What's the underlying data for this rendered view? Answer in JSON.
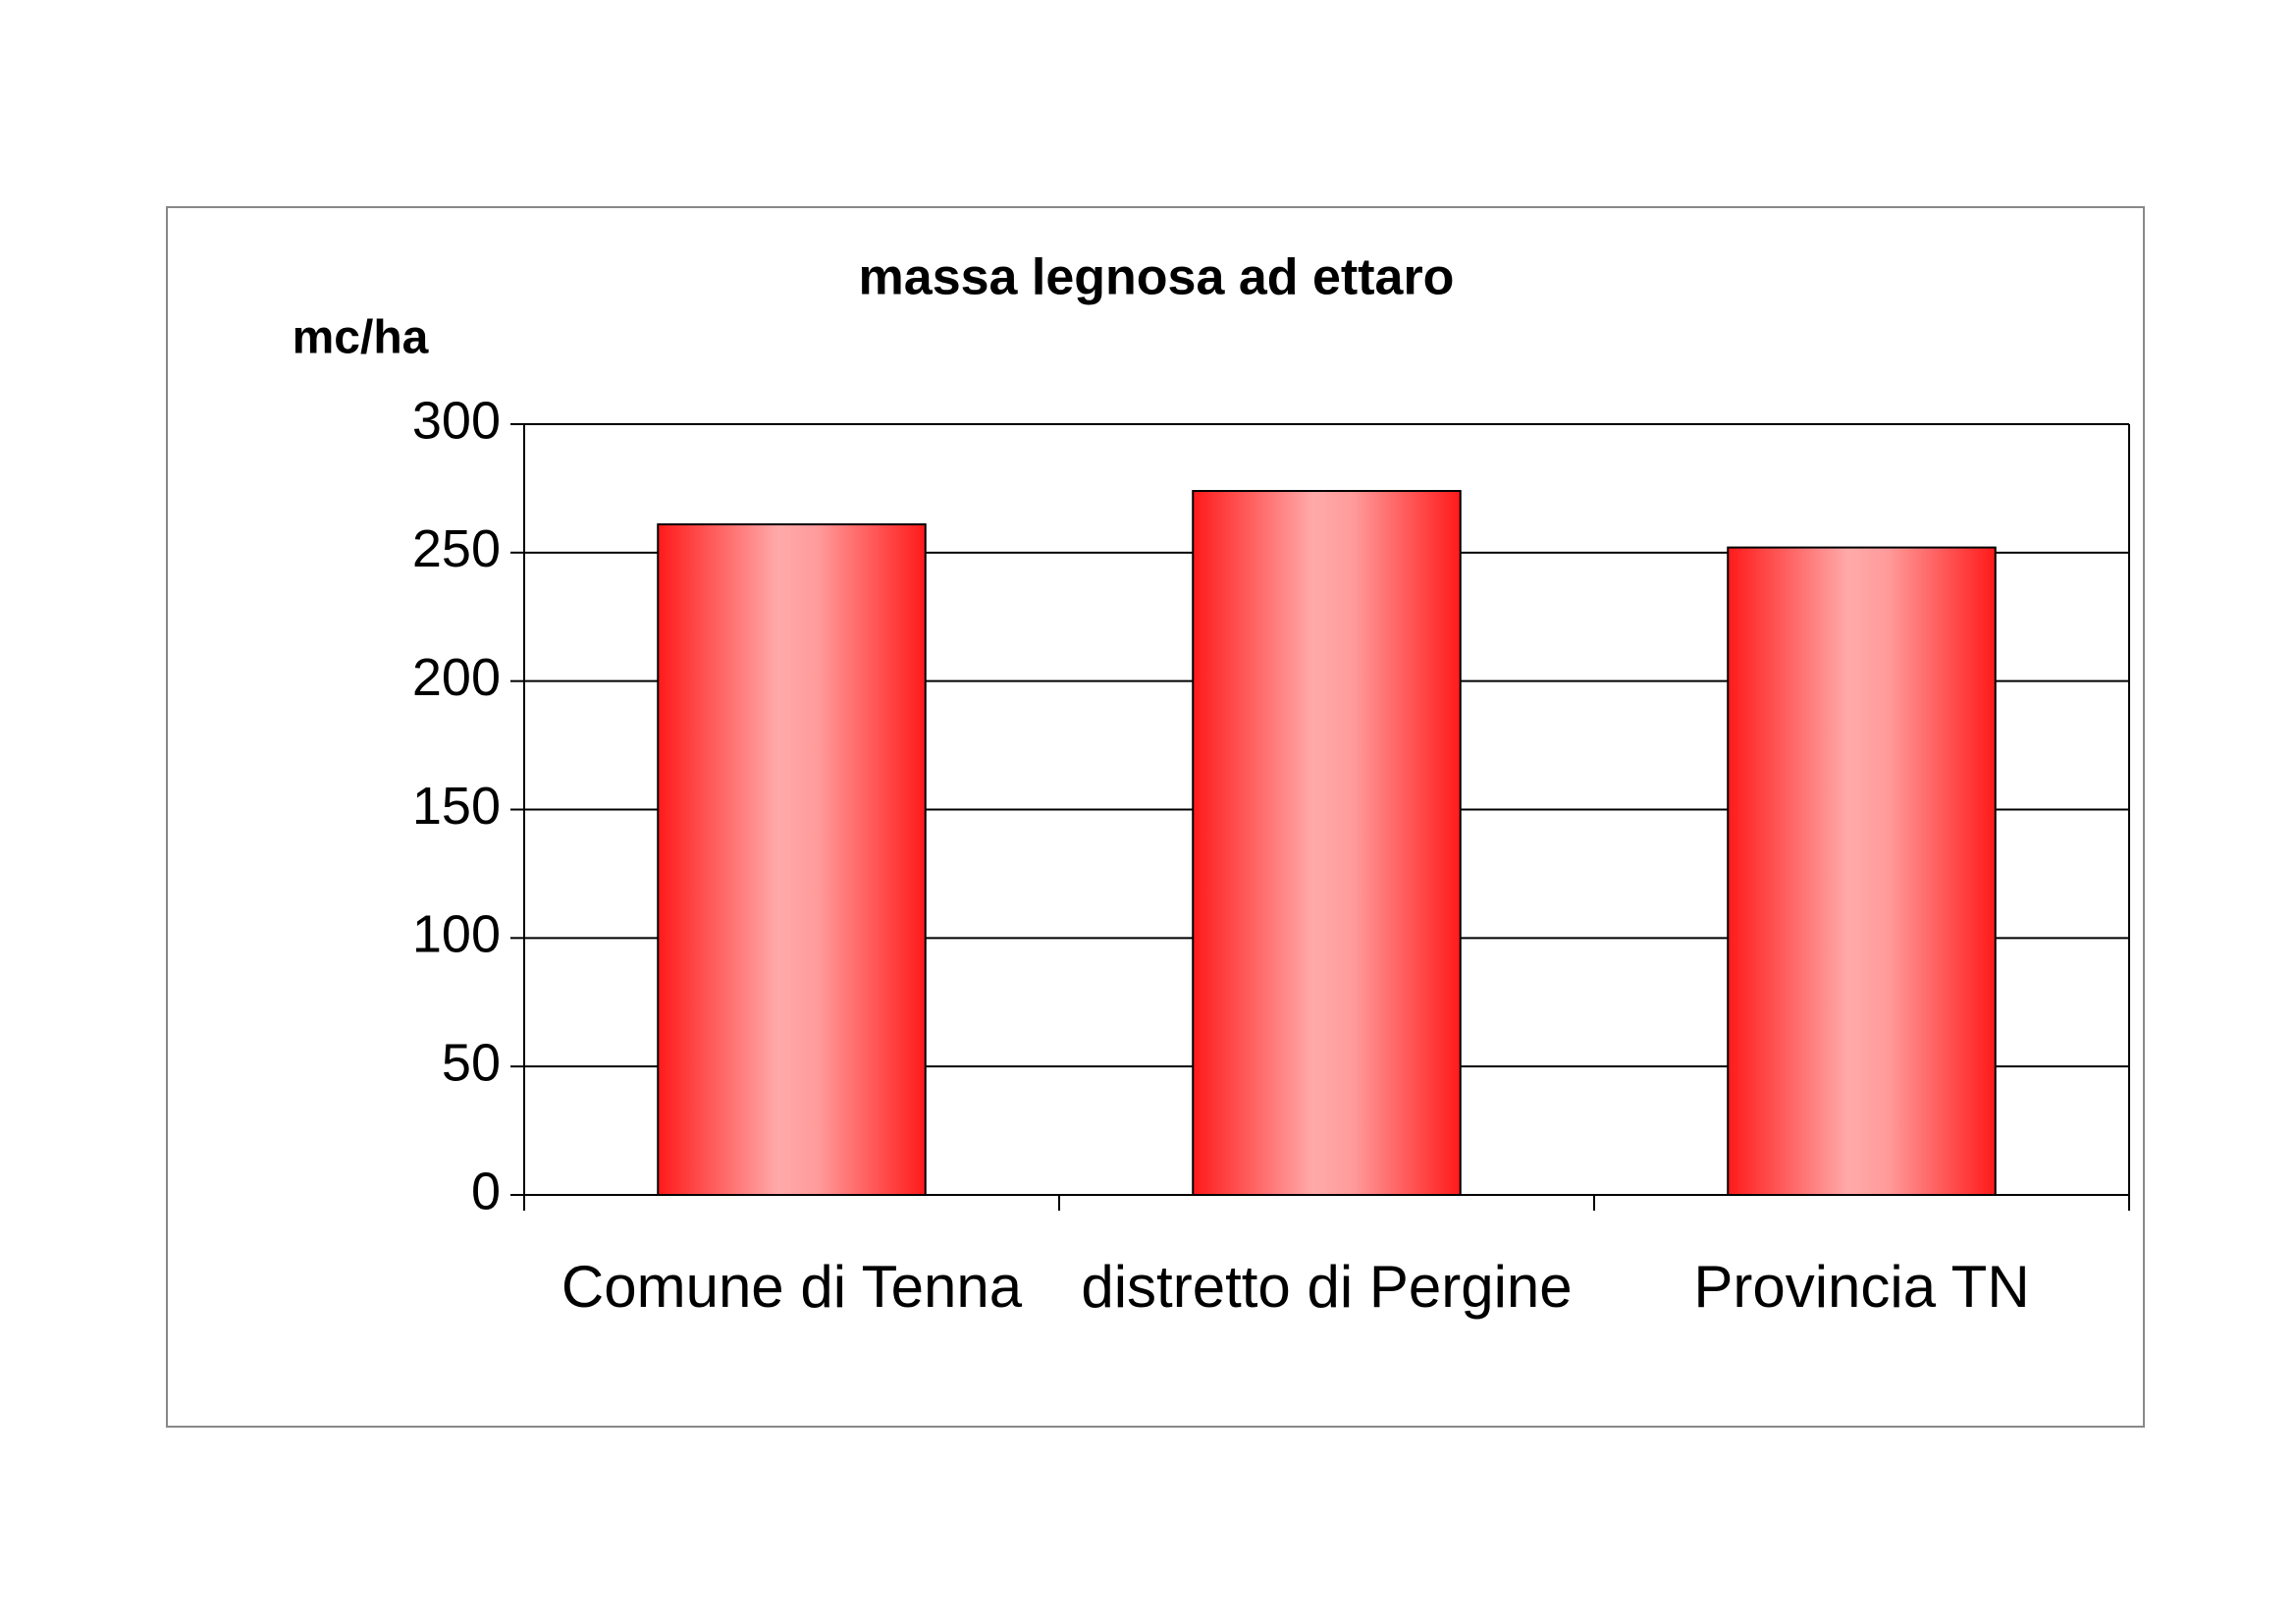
{
  "chart_data": {
    "type": "bar",
    "title": "massa legnosa ad ettaro",
    "y_label": "mc/ha",
    "categories": [
      "Comune di Tenna",
      "distretto di Pergine",
      "Provincia TN"
    ],
    "values": [
      261,
      274,
      252
    ],
    "color": "#ff1a1a",
    "ylim": [
      0,
      300
    ],
    "yticks": [
      0,
      50,
      100,
      150,
      200,
      250,
      300
    ],
    "grid": true
  }
}
